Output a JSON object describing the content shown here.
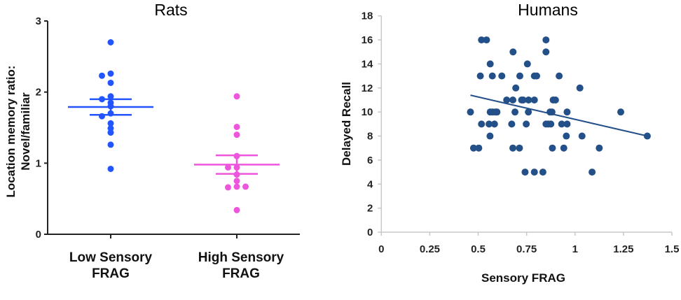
{
  "chart_data": [
    {
      "type": "scatter",
      "title": "Rats",
      "ylabel": [
        "Location memory ratio:",
        "Novel/familiar"
      ],
      "xlabel": "",
      "categories": [
        [
          "Low Sensory",
          "FRAG"
        ],
        [
          "High Sensory",
          "FRAG"
        ]
      ],
      "ylim": [
        0,
        3
      ],
      "yticks": [
        "0",
        "1",
        "2",
        "3"
      ],
      "grid": false,
      "series": [
        {
          "category": 0,
          "color": "#2255ff",
          "values": [
            2.7,
            2.26,
            2.23,
            2.13,
            1.94,
            1.9,
            1.85,
            1.8,
            1.7,
            1.66,
            1.56,
            1.49,
            1.43,
            1.26,
            0.92
          ],
          "mean": 1.79,
          "sem_upper": 1.9,
          "sem_lower": 1.68
        },
        {
          "category": 1,
          "color": "#ee55dd",
          "values": [
            1.94,
            1.51,
            1.4,
            1.1,
            0.94,
            0.94,
            0.84,
            0.75,
            0.67,
            0.66,
            0.67,
            0.34
          ],
          "mean": 0.98,
          "sem_upper": 1.11,
          "sem_lower": 0.85
        }
      ]
    },
    {
      "type": "scatter",
      "title": "Humans",
      "xlabel": "Sensory FRAG",
      "ylabel": "Delayed Recall",
      "xlim": [
        0,
        1.5
      ],
      "ylim": [
        0,
        18
      ],
      "xticks": [
        "0",
        "0.25",
        "0.5",
        "0.75",
        "1",
        "1.25",
        "1.5"
      ],
      "yticks": [
        "0",
        "2",
        "4",
        "6",
        "8",
        "10",
        "12",
        "14",
        "16",
        "18"
      ],
      "grid": false,
      "color": "#24508a",
      "points": [
        [
          0.517,
          16
        ],
        [
          0.543,
          16
        ],
        [
          0.85,
          16
        ],
        [
          0.68,
          15
        ],
        [
          0.85,
          15
        ],
        [
          0.562,
          14
        ],
        [
          0.754,
          14
        ],
        [
          0.511,
          13
        ],
        [
          0.573,
          13
        ],
        [
          0.622,
          13
        ],
        [
          0.715,
          13
        ],
        [
          0.79,
          13
        ],
        [
          0.802,
          13
        ],
        [
          0.918,
          13
        ],
        [
          0.694,
          12
        ],
        [
          1.025,
          12
        ],
        [
          0.647,
          11
        ],
        [
          0.679,
          11
        ],
        [
          0.724,
          11
        ],
        [
          0.732,
          11
        ],
        [
          0.76,
          11
        ],
        [
          0.79,
          11
        ],
        [
          0.887,
          11
        ],
        [
          0.899,
          11
        ],
        [
          0.46,
          10
        ],
        [
          0.562,
          10
        ],
        [
          0.575,
          10
        ],
        [
          0.59,
          10
        ],
        [
          0.597,
          10
        ],
        [
          0.69,
          10
        ],
        [
          0.759,
          10
        ],
        [
          0.871,
          10
        ],
        [
          0.881,
          10
        ],
        [
          0.959,
          10
        ],
        [
          1.236,
          10
        ],
        [
          0.517,
          9
        ],
        [
          0.556,
          9
        ],
        [
          0.584,
          9
        ],
        [
          0.673,
          9
        ],
        [
          0.748,
          9
        ],
        [
          0.85,
          9
        ],
        [
          0.862,
          9
        ],
        [
          0.875,
          9
        ],
        [
          0.931,
          9
        ],
        [
          0.959,
          9
        ],
        [
          0.561,
          8
        ],
        [
          0.955,
          8
        ],
        [
          1.036,
          8
        ],
        [
          1.373,
          8
        ],
        [
          0.476,
          7
        ],
        [
          0.503,
          7
        ],
        [
          0.679,
          7
        ],
        [
          0.713,
          7
        ],
        [
          0.883,
          7
        ],
        [
          0.942,
          7
        ],
        [
          1.125,
          7
        ],
        [
          0.742,
          5
        ],
        [
          0.79,
          5
        ],
        [
          0.834,
          5
        ],
        [
          1.088,
          5
        ]
      ],
      "trendline": [
        [
          0.46,
          11.4
        ],
        [
          1.373,
          8.0
        ]
      ]
    }
  ]
}
